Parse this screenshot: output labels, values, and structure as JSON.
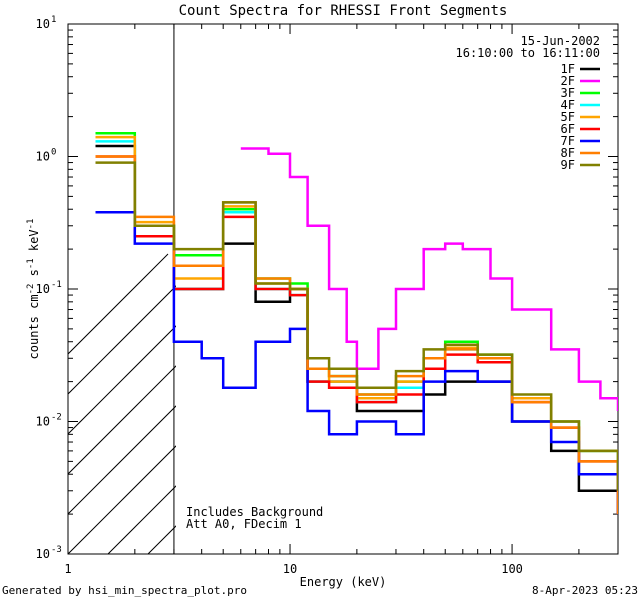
{
  "chart_data": {
    "type": "line",
    "title": "Count Spectra for RHESSI Front Segments",
    "xlabel": "Energy (keV)",
    "ylabel_base": "counts cm",
    "ylabel_exp1": "-2",
    "ylabel_mid": " s",
    "ylabel_exp2": "-1",
    "ylabel_end": " keV",
    "ylabel_exp3": "-1",
    "x_scale": "log",
    "y_scale": "log",
    "xlim": [
      1,
      300
    ],
    "ylim": [
      0.001,
      10
    ],
    "x_ticks": [
      {
        "value": 1,
        "label": "1"
      },
      {
        "value": 10,
        "label": "10"
      },
      {
        "value": 100,
        "label": "100"
      }
    ],
    "y_ticks": [
      {
        "value": 0.001,
        "base": "10",
        "exp": "-3"
      },
      {
        "value": 0.01,
        "base": "10",
        "exp": "-2"
      },
      {
        "value": 0.1,
        "base": "10",
        "exp": "-1"
      },
      {
        "value": 1,
        "base": "10",
        "exp": "0"
      },
      {
        "value": 10,
        "base": "10",
        "exp": "1"
      }
    ],
    "shaded_region_kev": [
      1,
      3
    ],
    "date": "15-Jun-2002",
    "time_range": "16:10:00 to 16:11:00",
    "annotation_line1": "Includes Background",
    "annotation_line2": "Att A0, FDecim 1",
    "footer_left": "Generated by hsi_min_spectra_plot.pro",
    "footer_right": "8-Apr-2023 05:23",
    "series": [
      {
        "name": "1F",
        "color": "#000000",
        "points": [
          [
            1.33,
            1.2
          ],
          [
            2,
            0.3
          ],
          [
            3,
            0.1
          ],
          [
            5,
            0.22
          ],
          [
            7,
            0.08
          ],
          [
            10,
            0.1
          ],
          [
            12,
            0.02
          ],
          [
            15,
            0.02
          ],
          [
            20,
            0.012
          ],
          [
            30,
            0.012
          ],
          [
            40,
            0.016
          ],
          [
            50,
            0.02
          ],
          [
            70,
            0.02
          ],
          [
            100,
            0.01
          ],
          [
            150,
            0.006
          ],
          [
            200,
            0.003
          ],
          [
            300,
            0.002
          ]
        ]
      },
      {
        "name": "2F",
        "color": "#ff00ff",
        "points": [
          [
            6,
            1.15
          ],
          [
            7,
            1.15
          ],
          [
            8,
            1.05
          ],
          [
            10,
            0.7
          ],
          [
            12,
            0.3
          ],
          [
            15,
            0.1
          ],
          [
            18,
            0.04
          ],
          [
            20,
            0.025
          ],
          [
            25,
            0.05
          ],
          [
            30,
            0.1
          ],
          [
            40,
            0.2
          ],
          [
            50,
            0.22
          ],
          [
            60,
            0.2
          ],
          [
            80,
            0.12
          ],
          [
            100,
            0.07
          ],
          [
            150,
            0.035
          ],
          [
            200,
            0.02
          ],
          [
            250,
            0.015
          ],
          [
            300,
            0.012
          ]
        ]
      },
      {
        "name": "3F",
        "color": "#00ff00",
        "points": [
          [
            1.33,
            1.5
          ],
          [
            2,
            0.3
          ],
          [
            3,
            0.18
          ],
          [
            5,
            0.4
          ],
          [
            7,
            0.12
          ],
          [
            10,
            0.11
          ],
          [
            12,
            0.025
          ],
          [
            15,
            0.022
          ],
          [
            20,
            0.016
          ],
          [
            30,
            0.02
          ],
          [
            40,
            0.03
          ],
          [
            50,
            0.04
          ],
          [
            70,
            0.032
          ],
          [
            100,
            0.015
          ],
          [
            150,
            0.01
          ],
          [
            200,
            0.006
          ],
          [
            300,
            0.003
          ]
        ]
      },
      {
        "name": "4F",
        "color": "#00ffff",
        "points": [
          [
            1.33,
            1.3
          ],
          [
            2,
            0.3
          ],
          [
            3,
            0.1
          ],
          [
            5,
            0.38
          ],
          [
            7,
            0.1
          ],
          [
            10,
            0.09
          ],
          [
            12,
            0.02
          ],
          [
            15,
            0.02
          ],
          [
            20,
            0.014
          ],
          [
            30,
            0.018
          ],
          [
            40,
            0.025
          ],
          [
            50,
            0.035
          ],
          [
            70,
            0.03
          ],
          [
            100,
            0.015
          ],
          [
            150,
            0.01
          ],
          [
            200,
            0.006
          ],
          [
            300,
            0.003
          ]
        ]
      },
      {
        "name": "5F",
        "color": "#ffa500",
        "points": [
          [
            1.33,
            1.4
          ],
          [
            2,
            0.32
          ],
          [
            3,
            0.12
          ],
          [
            5,
            0.42
          ],
          [
            7,
            0.11
          ],
          [
            10,
            0.1
          ],
          [
            12,
            0.025
          ],
          [
            15,
            0.02
          ],
          [
            20,
            0.015
          ],
          [
            30,
            0.02
          ],
          [
            40,
            0.03
          ],
          [
            50,
            0.036
          ],
          [
            70,
            0.03
          ],
          [
            100,
            0.015
          ],
          [
            150,
            0.01
          ],
          [
            200,
            0.006
          ],
          [
            300,
            0.003
          ]
        ]
      },
      {
        "name": "6F",
        "color": "#ff0000",
        "points": [
          [
            1.33,
            1.0
          ],
          [
            2,
            0.25
          ],
          [
            3,
            0.1
          ],
          [
            5,
            0.35
          ],
          [
            7,
            0.1
          ],
          [
            10,
            0.09
          ],
          [
            12,
            0.02
          ],
          [
            15,
            0.018
          ],
          [
            20,
            0.014
          ],
          [
            30,
            0.016
          ],
          [
            40,
            0.025
          ],
          [
            50,
            0.032
          ],
          [
            70,
            0.028
          ],
          [
            100,
            0.014
          ],
          [
            150,
            0.009
          ],
          [
            200,
            0.005
          ],
          [
            300,
            0.002
          ]
        ]
      },
      {
        "name": "7F",
        "color": "#0000ff",
        "points": [
          [
            1.33,
            0.38
          ],
          [
            2,
            0.22
          ],
          [
            3,
            0.04
          ],
          [
            4,
            0.03
          ],
          [
            5,
            0.018
          ],
          [
            7,
            0.04
          ],
          [
            10,
            0.05
          ],
          [
            12,
            0.012
          ],
          [
            15,
            0.008
          ],
          [
            20,
            0.01
          ],
          [
            30,
            0.008
          ],
          [
            40,
            0.02
          ],
          [
            50,
            0.024
          ],
          [
            70,
            0.02
          ],
          [
            100,
            0.01
          ],
          [
            150,
            0.007
          ],
          [
            200,
            0.004
          ],
          [
            300,
            0.002
          ]
        ]
      },
      {
        "name": "8F",
        "color": "#ff7f00",
        "points": [
          [
            1.33,
            1.0
          ],
          [
            2,
            0.35
          ],
          [
            3,
            0.15
          ],
          [
            5,
            0.45
          ],
          [
            7,
            0.12
          ],
          [
            10,
            0.1
          ],
          [
            12,
            0.025
          ],
          [
            15,
            0.022
          ],
          [
            20,
            0.016
          ],
          [
            30,
            0.022
          ],
          [
            40,
            0.03
          ],
          [
            50,
            0.035
          ],
          [
            70,
            0.03
          ],
          [
            100,
            0.014
          ],
          [
            150,
            0.009
          ],
          [
            200,
            0.005
          ],
          [
            300,
            0.002
          ]
        ]
      },
      {
        "name": "9F",
        "color": "#808000",
        "points": [
          [
            1.33,
            0.9
          ],
          [
            2,
            0.3
          ],
          [
            3,
            0.2
          ],
          [
            5,
            0.45
          ],
          [
            7,
            0.11
          ],
          [
            10,
            0.1
          ],
          [
            12,
            0.03
          ],
          [
            15,
            0.025
          ],
          [
            20,
            0.018
          ],
          [
            30,
            0.024
          ],
          [
            40,
            0.035
          ],
          [
            50,
            0.038
          ],
          [
            70,
            0.032
          ],
          [
            100,
            0.016
          ],
          [
            150,
            0.01
          ],
          [
            200,
            0.006
          ],
          [
            300,
            0.003
          ]
        ]
      }
    ]
  }
}
